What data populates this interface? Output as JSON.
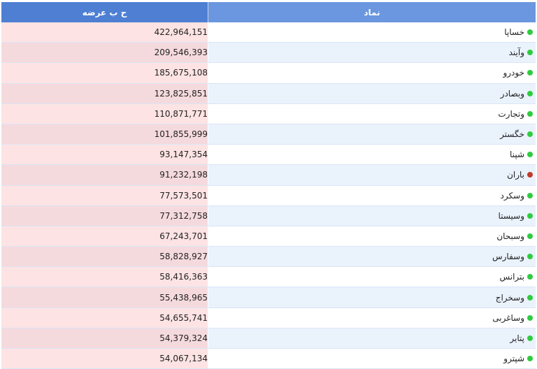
{
  "header": {
    "symbol_label": "نماد",
    "supply_label": "ح ب عرضه"
  },
  "colors": {
    "positive": "#2ecc40",
    "negative": "#c0392b"
  },
  "rows": [
    {
      "symbol": "خساپا",
      "status": "positive",
      "supply_volume": "422,964,151"
    },
    {
      "symbol": "وآیند",
      "status": "positive",
      "supply_volume": "209,546,393"
    },
    {
      "symbol": "خودرو",
      "status": "positive",
      "supply_volume": "185,675,108"
    },
    {
      "symbol": "وبصادر",
      "status": "positive",
      "supply_volume": "123,825,851"
    },
    {
      "symbol": "وتجارت",
      "status": "positive",
      "supply_volume": "110,871,771"
    },
    {
      "symbol": "خگستر",
      "status": "positive",
      "supply_volume": "101,855,999"
    },
    {
      "symbol": "شپنا",
      "status": "positive",
      "supply_volume": "93,147,354"
    },
    {
      "symbol": "باران",
      "status": "negative",
      "supply_volume": "91,232,198"
    },
    {
      "symbol": "وسکرد",
      "status": "positive",
      "supply_volume": "77,573,501"
    },
    {
      "symbol": "وسیستا",
      "status": "positive",
      "supply_volume": "77,312,758"
    },
    {
      "symbol": "وسبحان",
      "status": "positive",
      "supply_volume": "67,243,701"
    },
    {
      "symbol": "وسفارس",
      "status": "positive",
      "supply_volume": "58,828,927"
    },
    {
      "symbol": "بترانس",
      "status": "positive",
      "supply_volume": "58,416,363"
    },
    {
      "symbol": "وسخراج",
      "status": "positive",
      "supply_volume": "55,438,965"
    },
    {
      "symbol": "وساغربی",
      "status": "positive",
      "supply_volume": "54,655,741"
    },
    {
      "symbol": "پتایر",
      "status": "positive",
      "supply_volume": "54,379,324"
    },
    {
      "symbol": "شپترو",
      "status": "positive",
      "supply_volume": "54,067,134"
    }
  ]
}
